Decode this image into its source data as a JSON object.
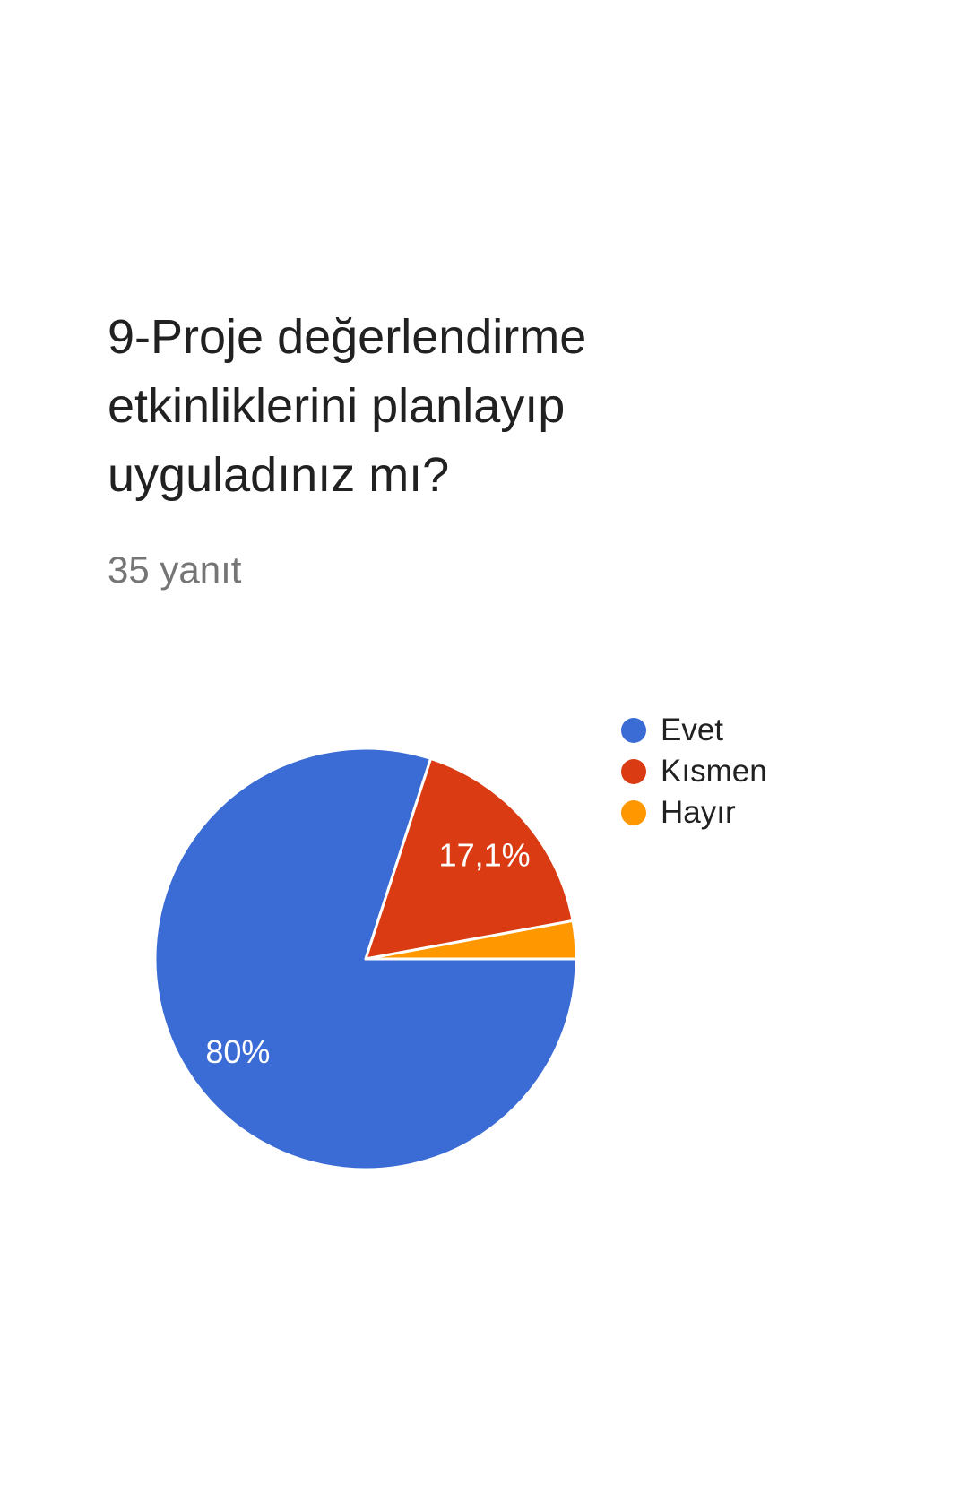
{
  "question": {
    "title": "9-Proje değerlendirme etkinliklerini planlayıp uyguladınız mı?",
    "responses_count_label": "35 yanıt"
  },
  "chart_data": {
    "type": "pie",
    "title": "9-Proje değerlendirme etkinliklerini planlayıp uyguladınız mı?",
    "subtitle": "35 yanıt",
    "total_responses_label": "35 yanıt",
    "categories": [
      "Evet",
      "Kısmen",
      "Hayır"
    ],
    "values": [
      80,
      17.1,
      2.9
    ],
    "slice_labels": [
      "80%",
      "17,1%",
      ""
    ],
    "colors": [
      "#3b6bd4",
      "#da3b12",
      "#ff9800"
    ],
    "legend_position": "right",
    "start_angle_deg": 90,
    "label_radius_ratio": 0.75,
    "label_color": "#ffffff",
    "slice_border_color": "#ffffff"
  }
}
